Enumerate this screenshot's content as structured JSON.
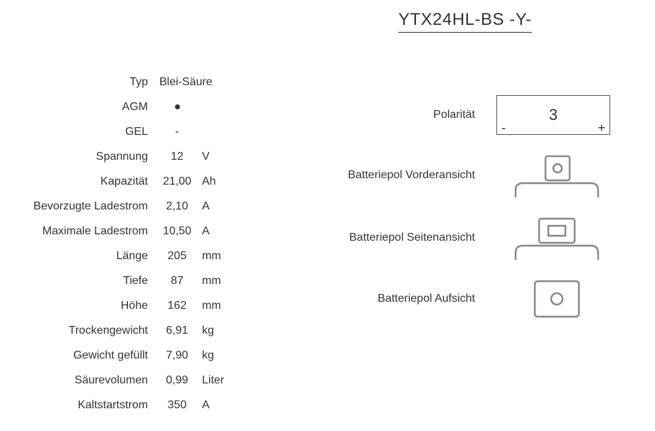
{
  "title": "YTX24HL-BS -Y-",
  "specs": [
    {
      "label": "Typ",
      "value": "Blei-Säure",
      "unit": ""
    },
    {
      "label": "AGM",
      "value": "•",
      "unit": ""
    },
    {
      "label": "GEL",
      "value": "-",
      "unit": ""
    },
    {
      "label": "Spannung",
      "value": "12",
      "unit": "V"
    },
    {
      "label": "Kapazität",
      "value": "21,00",
      "unit": "Ah"
    },
    {
      "label": "Bevorzugte Ladestrom",
      "value": "2,10",
      "unit": "A"
    },
    {
      "label": "Maximale Ladestrom",
      "value": "10,50",
      "unit": "A"
    },
    {
      "label": "Länge",
      "value": "205",
      "unit": "mm"
    },
    {
      "label": "Tiefe",
      "value": "87",
      "unit": "mm"
    },
    {
      "label": "Höhe",
      "value": "162",
      "unit": "mm"
    },
    {
      "label": "Trockengewicht",
      "value": "6,91",
      "unit": "kg"
    },
    {
      "label": "Gewicht gefüllt",
      "value": "7,90",
      "unit": "kg"
    },
    {
      "label": "Säurevolumen",
      "value": "0,99",
      "unit": "Liter"
    },
    {
      "label": "Kaltstartstrom",
      "value": "350",
      "unit": "A"
    }
  ],
  "polarity": {
    "label": "Polarität",
    "value": "3",
    "minus": "-",
    "plus": "+"
  },
  "views": {
    "front": "Batteriepol Vorderansicht",
    "side": "Batteriepol Seitenansicht",
    "top": "Batteriepol Aufsicht"
  },
  "colors": {
    "text": "#333333",
    "border": "#555555",
    "diagram_stroke": "#888888"
  }
}
